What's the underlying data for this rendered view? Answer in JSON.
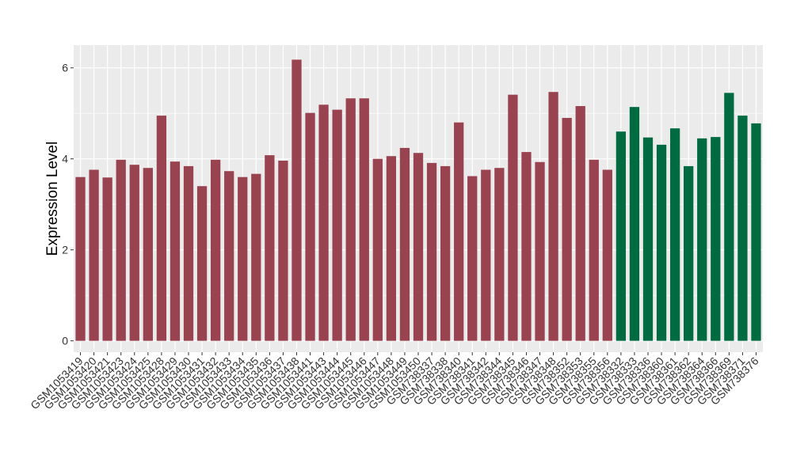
{
  "chart_data": {
    "type": "bar",
    "title": "",
    "xlabel": "",
    "ylabel": "Expression Level",
    "ylim": [
      -0.25,
      6.5
    ],
    "yticks": [
      0,
      2,
      4,
      6
    ],
    "grid": true,
    "legend": "none",
    "colors": {
      "group1": "#9a4350",
      "group2": "#006a40",
      "panel_bg": "#ebebeb",
      "grid": "#ffffff"
    },
    "categories": [
      "GSM1053419",
      "GSM1053420",
      "GSM1053421",
      "GSM1053423",
      "GSM1053424",
      "GSM1053425",
      "GSM1053428",
      "GSM1053429",
      "GSM1053430",
      "GSM1053431",
      "GSM1053432",
      "GSM1053433",
      "GSM1053434",
      "GSM1053435",
      "GSM1053436",
      "GSM1053437",
      "GSM1053438",
      "GSM1053441",
      "GSM1053443",
      "GSM1053444",
      "GSM1053445",
      "GSM1053446",
      "GSM1053447",
      "GSM1053448",
      "GSM1053449",
      "GSM1053450",
      "GSM738337",
      "GSM738338",
      "GSM738340",
      "GSM738341",
      "GSM738342",
      "GSM738344",
      "GSM738345",
      "GSM738346",
      "GSM738347",
      "GSM738348",
      "GSM738352",
      "GSM738353",
      "GSM738355",
      "GSM738356",
      "GSM738332",
      "GSM738333",
      "GSM738336",
      "GSM738360",
      "GSM738361",
      "GSM738362",
      "GSM738364",
      "GSM738366",
      "GSM738369",
      "GSM738371",
      "GSM738376"
    ],
    "values": [
      3.6,
      3.76,
      3.59,
      3.98,
      3.87,
      3.8,
      4.95,
      3.94,
      3.84,
      3.4,
      3.98,
      3.73,
      3.6,
      3.67,
      4.08,
      3.96,
      6.18,
      5.01,
      5.19,
      5.08,
      5.33,
      5.33,
      4.0,
      4.06,
      4.24,
      4.13,
      3.91,
      3.84,
      4.8,
      3.62,
      3.76,
      3.8,
      5.41,
      4.15,
      3.93,
      5.47,
      4.9,
      5.16,
      3.98,
      3.76,
      4.6,
      5.14,
      4.47,
      4.31,
      4.67,
      3.84,
      4.45,
      4.48,
      5.45,
      4.95,
      4.78
    ],
    "groups": [
      "group1",
      "group1",
      "group1",
      "group1",
      "group1",
      "group1",
      "group1",
      "group1",
      "group1",
      "group1",
      "group1",
      "group1",
      "group1",
      "group1",
      "group1",
      "group1",
      "group1",
      "group1",
      "group1",
      "group1",
      "group1",
      "group1",
      "group1",
      "group1",
      "group1",
      "group1",
      "group1",
      "group1",
      "group1",
      "group1",
      "group1",
      "group1",
      "group1",
      "group1",
      "group1",
      "group1",
      "group1",
      "group1",
      "group1",
      "group1",
      "group2",
      "group2",
      "group2",
      "group2",
      "group2",
      "group2",
      "group2",
      "group2",
      "group2",
      "group2",
      "group2"
    ]
  }
}
